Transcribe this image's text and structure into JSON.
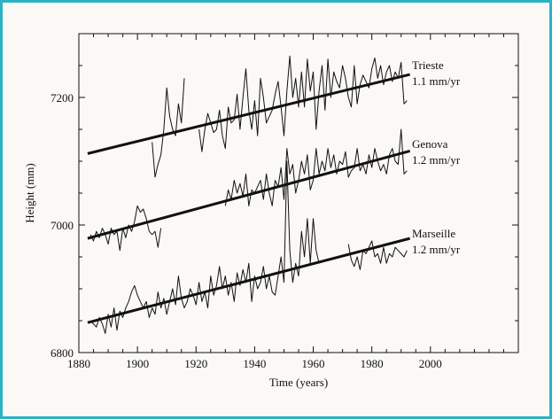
{
  "chart_data": {
    "type": "line",
    "title": "",
    "xlabel": "Time (years)",
    "ylabel": "Height (mm)",
    "xlim": [
      1880,
      2030
    ],
    "ylim": [
      6800,
      7300
    ],
    "xticks": [
      1880,
      1900,
      1920,
      1940,
      1960,
      1980,
      2000
    ],
    "yticks": [
      6800,
      7000,
      7200
    ],
    "grid": false,
    "legend": "inline-right",
    "colors": {
      "border": "#2bb3c3",
      "line": "#111111",
      "background": "#fbf9f5"
    },
    "series": [
      {
        "name": "Trieste",
        "rate_label": "1.1 mm/yr",
        "trend": {
          "x": [
            1883,
            1993
          ],
          "y": [
            7112,
            7236
          ]
        },
        "x": [
          1905,
          1906,
          1907,
          1908,
          1909,
          1910,
          1911,
          1912,
          1913,
          1914,
          1915,
          1916,
          1921,
          1922,
          1923,
          1924,
          1926,
          1927,
          1928,
          1929,
          1930,
          1931,
          1932,
          1933,
          1934,
          1935,
          1936,
          1937,
          1938,
          1939,
          1940,
          1941,
          1942,
          1943,
          1944,
          1945,
          1946,
          1947,
          1948,
          1949,
          1950,
          1951,
          1952,
          1953,
          1954,
          1955,
          1956,
          1957,
          1958,
          1959,
          1960,
          1961,
          1962,
          1963,
          1964,
          1965,
          1966,
          1967,
          1968,
          1969,
          1970,
          1971,
          1972,
          1973,
          1974,
          1975,
          1976,
          1977,
          1978,
          1979,
          1980,
          1981,
          1982,
          1983,
          1984,
          1985,
          1986,
          1987,
          1988,
          1989,
          1990,
          1991,
          1992
        ],
        "y": [
          7130,
          7075,
          7095,
          7110,
          7150,
          7215,
          7170,
          7150,
          7140,
          7190,
          7160,
          7230,
          7150,
          7115,
          7150,
          7175,
          7145,
          7150,
          7180,
          7140,
          7120,
          7185,
          7160,
          7165,
          7205,
          7150,
          7200,
          7245,
          7180,
          7150,
          7195,
          7140,
          7230,
          7200,
          7160,
          7170,
          7180,
          7205,
          7225,
          7185,
          7140,
          7210,
          7265,
          7200,
          7230,
          7185,
          7240,
          7185,
          7260,
          7210,
          7240,
          7150,
          7210,
          7250,
          7180,
          7260,
          7200,
          7240,
          7225,
          7215,
          7250,
          7230,
          7200,
          7185,
          7250,
          7190,
          7220,
          7235,
          7225,
          7215,
          7245,
          7262,
          7230,
          7250,
          7220,
          7240,
          7250,
          7225,
          7240,
          7230,
          7255,
          7190,
          7195
        ]
      },
      {
        "name": "Genova",
        "rate_label": "1.2 mm/yr",
        "trend": {
          "x": [
            1883,
            1993
          ],
          "y": [
            6979,
            7116
          ]
        },
        "x": [
          1884,
          1885,
          1886,
          1887,
          1888,
          1889,
          1890,
          1891,
          1892,
          1893,
          1894,
          1895,
          1896,
          1897,
          1898,
          1899,
          1900,
          1901,
          1902,
          1903,
          1904,
          1905,
          1906,
          1907,
          1908,
          1930,
          1931,
          1932,
          1933,
          1934,
          1935,
          1936,
          1937,
          1938,
          1939,
          1940,
          1941,
          1942,
          1943,
          1944,
          1945,
          1946,
          1947,
          1948,
          1949,
          1950,
          1951,
          1952,
          1953,
          1954,
          1955,
          1956,
          1957,
          1958,
          1959,
          1960,
          1961,
          1962,
          1963,
          1964,
          1965,
          1966,
          1967,
          1968,
          1969,
          1970,
          1971,
          1972,
          1973,
          1974,
          1975,
          1976,
          1977,
          1978,
          1979,
          1980,
          1981,
          1982,
          1983,
          1984,
          1985,
          1986,
          1987,
          1988,
          1989,
          1990,
          1991,
          1992
        ],
        "y": [
          6985,
          6975,
          6990,
          6980,
          6995,
          6985,
          6970,
          6995,
          6985,
          6990,
          6960,
          6995,
          6980,
          7000,
          6990,
          7005,
          7030,
          7020,
          7025,
          7010,
          6990,
          6985,
          6990,
          6965,
          6995,
          7030,
          7055,
          7040,
          7070,
          7050,
          7065,
          7045,
          7080,
          7030,
          7055,
          7050,
          7060,
          7070,
          7040,
          7080,
          7050,
          7030,
          7070,
          7060,
          7090,
          7040,
          7120,
          7080,
          7095,
          7050,
          7070,
          7100,
          7080,
          7110,
          7055,
          7070,
          7120,
          7080,
          7100,
          7085,
          7120,
          7090,
          7110,
          7080,
          7100,
          7095,
          7115,
          7075,
          7085,
          7090,
          7120,
          7085,
          7095,
          7080,
          7110,
          7090,
          7120,
          7100,
          7085,
          7095,
          7080,
          7110,
          7120,
          7100,
          7095,
          7150,
          7080,
          7085
        ]
      },
      {
        "name": "Marseille",
        "rate_label": "1.2 mm/yr",
        "trend": {
          "x": [
            1883,
            1993
          ],
          "y": [
            6847,
            6979
          ]
        },
        "x": [
          1884,
          1885,
          1886,
          1887,
          1888,
          1889,
          1890,
          1891,
          1892,
          1893,
          1894,
          1895,
          1896,
          1897,
          1898,
          1899,
          1900,
          1901,
          1902,
          1903,
          1904,
          1905,
          1906,
          1907,
          1908,
          1909,
          1910,
          1911,
          1912,
          1913,
          1914,
          1915,
          1916,
          1917,
          1918,
          1919,
          1920,
          1921,
          1922,
          1923,
          1924,
          1925,
          1926,
          1927,
          1928,
          1929,
          1930,
          1931,
          1932,
          1933,
          1934,
          1935,
          1936,
          1937,
          1938,
          1939,
          1940,
          1941,
          1942,
          1943,
          1944,
          1945,
          1946,
          1947,
          1948,
          1949,
          1950,
          1951,
          1952,
          1953,
          1954,
          1955,
          1956,
          1957,
          1958,
          1959,
          1960,
          1961,
          1962,
          1972,
          1973,
          1974,
          1975,
          1976,
          1977,
          1978,
          1979,
          1980,
          1981,
          1982,
          1983,
          1984,
          1985,
          1986,
          1987,
          1988,
          1989,
          1990,
          1991,
          1992
        ],
        "y": [
          6850,
          6845,
          6840,
          6855,
          6845,
          6830,
          6860,
          6840,
          6870,
          6835,
          6865,
          6855,
          6870,
          6880,
          6895,
          6905,
          6890,
          6880,
          6870,
          6880,
          6855,
          6870,
          6860,
          6895,
          6870,
          6885,
          6860,
          6880,
          6900,
          6875,
          6920,
          6885,
          6870,
          6880,
          6900,
          6890,
          6875,
          6910,
          6880,
          6895,
          6870,
          6920,
          6890,
          6905,
          6935,
          6900,
          6920,
          6890,
          6910,
          6880,
          6925,
          6905,
          6930,
          6910,
          6940,
          6880,
          6920,
          6900,
          6910,
          6935,
          6900,
          6920,
          6895,
          6890,
          6920,
          6950,
          6910,
          7100,
          6960,
          6910,
          6940,
          6920,
          6990,
          6950,
          7010,
          6940,
          7010,
          6960,
          6940,
          6970,
          6945,
          6935,
          6950,
          6930,
          6960,
          6955,
          6965,
          6975,
          6950,
          6955,
          6940,
          6965,
          6940,
          6955,
          6950,
          6965,
          6960,
          6955,
          6950,
          6960
        ]
      }
    ]
  }
}
